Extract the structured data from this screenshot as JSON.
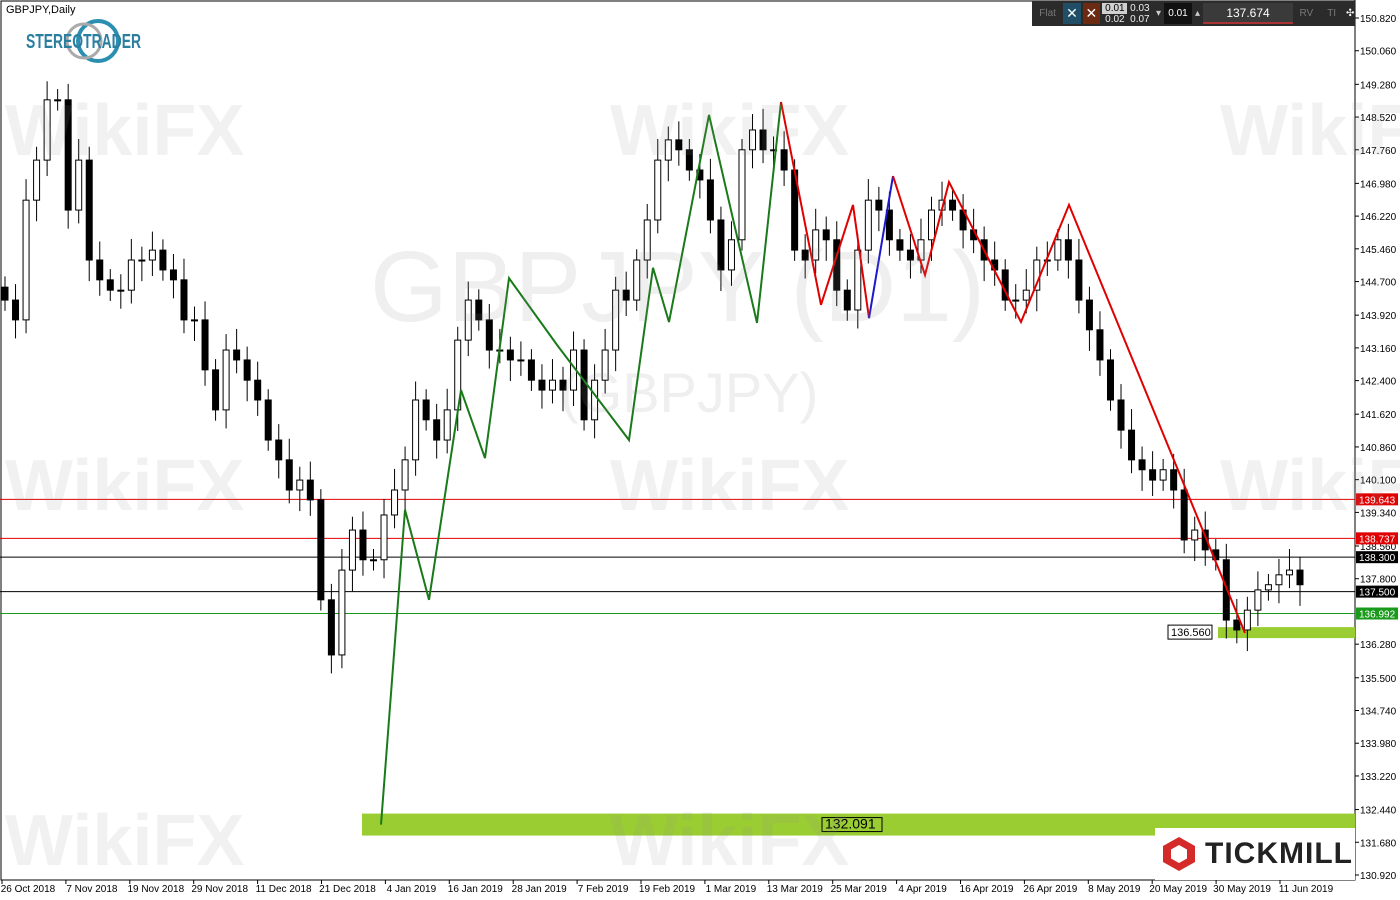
{
  "window": {
    "title": "GBPJPY,Daily",
    "logo_text": "STEREOTRADER"
  },
  "toolbar": {
    "flat": "Flat",
    "close_buy": "✕",
    "close_sell": "✕",
    "lots": [
      "0.01",
      "0.03",
      "0.02",
      "0.07"
    ],
    "quantity": "0.01",
    "price": "137.674",
    "rv": "RV",
    "ti": "TI"
  },
  "watermarks": {
    "wikifx": "WikiFX",
    "symbol": "GBPJPY (D1)",
    "symbol_sub": "(GBPJPY)"
  },
  "branding": {
    "tickmill": "TICKMILL"
  },
  "colors": {
    "bull": "#ffffff",
    "bear": "#000000",
    "up_wave": "#1a7a1a",
    "down_wave": "#e00000",
    "alt_wave": "#1a1acc",
    "zone": "#9acd32",
    "resistance": "#e00000",
    "support": "#1a9a1a"
  },
  "chart_data": {
    "type": "candlestick",
    "symbol": "GBPJPY",
    "timeframe": "Daily",
    "ylim": [
      130.92,
      150.82
    ],
    "y_ticks": [
      "150.820",
      "150.060",
      "149.280",
      "148.520",
      "147.760",
      "146.980",
      "146.220",
      "145.460",
      "144.700",
      "143.920",
      "143.160",
      "142.400",
      "141.620",
      "140.860",
      "140.100",
      "139.340",
      "138.560",
      "137.800",
      "136.280",
      "135.500",
      "134.740",
      "133.980",
      "133.220",
      "132.440",
      "131.680",
      "130.920"
    ],
    "x_ticks": [
      "26 Oct 2018",
      "7 Nov 2018",
      "19 Nov 2018",
      "29 Nov 2018",
      "11 Dec 2018",
      "21 Dec 2018",
      "4 Jan 2019",
      "16 Jan 2019",
      "28 Jan 2019",
      "7 Feb 2019",
      "19 Feb 2019",
      "1 Mar 2019",
      "13 Mar 2019",
      "25 Mar 2019",
      "4 Apr 2019",
      "16 Apr 2019",
      "26 Apr 2019",
      "8 May 2019",
      "20 May 2019",
      "30 May 2019",
      "11 Jun 2019"
    ],
    "closes": [
      144.27,
      143.81,
      146.59,
      147.52,
      148.92,
      148.92,
      146.36,
      147.52,
      145.2,
      144.74,
      144.5,
      144.5,
      145.2,
      145.2,
      145.43,
      144.97,
      144.74,
      143.81,
      143.81,
      142.65,
      141.72,
      143.11,
      142.88,
      142.41,
      141.95,
      141.02,
      140.56,
      139.86,
      140.09,
      139.63,
      137.31,
      136.03,
      138.0,
      138.93,
      138.24,
      138.24,
      139.28,
      139.86,
      140.56,
      141.95,
      141.49,
      141.02,
      141.72,
      143.34,
      144.27,
      143.81,
      143.11,
      143.11,
      142.88,
      142.88,
      142.41,
      142.18,
      142.41,
      142.18,
      143.11,
      141.49,
      142.41,
      143.11,
      144.5,
      144.27,
      145.2,
      146.13,
      147.52,
      147.99,
      147.76,
      147.29,
      147.06,
      146.13,
      144.97,
      145.67,
      147.76,
      148.22,
      147.76,
      147.76,
      147.29,
      145.43,
      145.2,
      145.9,
      145.67,
      144.5,
      144.04,
      145.43,
      146.59,
      146.36,
      145.67,
      145.43,
      145.2,
      145.67,
      146.36,
      146.59,
      146.36,
      145.9,
      145.67,
      145.2,
      144.97,
      144.27,
      144.27,
      144.5,
      145.2,
      145.2,
      145.67,
      145.2,
      144.27,
      143.58,
      142.88,
      141.95,
      141.25,
      140.56,
      140.33,
      140.09,
      140.33,
      139.86,
      138.7,
      138.93,
      138.47,
      138.24,
      136.84,
      136.61,
      137.07,
      137.54,
      137.66,
      137.89,
      138.0,
      137.66
    ],
    "zigzag": [
      {
        "color": "up_wave",
        "points": [
          [
            47,
            132.09
          ],
          [
            50,
            139.4
          ],
          [
            53,
            137.31
          ],
          [
            57,
            142.18
          ],
          [
            60,
            140.6
          ],
          [
            63,
            144.78
          ],
          [
            69,
            143.23
          ],
          [
            78,
            141.02
          ],
          [
            81,
            145.02
          ],
          [
            83,
            143.76
          ],
          [
            88,
            148.57
          ],
          [
            94,
            143.74
          ],
          [
            97,
            148.87
          ]
        ]
      },
      {
        "color": "down_wave",
        "points": [
          [
            97,
            148.87
          ],
          [
            102,
            144.16
          ],
          [
            106,
            146.48
          ],
          [
            108,
            143.85
          ]
        ]
      },
      {
        "color": "alt_wave",
        "points": [
          [
            108,
            143.85
          ],
          [
            111,
            147.15
          ]
        ]
      },
      {
        "color": "down_wave",
        "points": [
          [
            111,
            147.15
          ],
          [
            115,
            144.85
          ],
          [
            118,
            147.01
          ],
          [
            127,
            143.76
          ],
          [
            133,
            146.48
          ],
          [
            155,
            136.54
          ]
        ]
      }
    ],
    "levels": [
      {
        "price": 139.643,
        "label": "139.643",
        "color": "#e00000"
      },
      {
        "price": 138.737,
        "label": "138.737",
        "color": "#e00000"
      },
      {
        "price": 138.3,
        "label": "138.300",
        "color": "#000000"
      },
      {
        "price": 137.5,
        "label": "137.500",
        "color": "#000000"
      },
      {
        "price": 136.992,
        "label": "136.992",
        "color": "#1a9a1a"
      }
    ],
    "zones": [
      {
        "price": 136.56,
        "label": "136.560",
        "start_bar": 152
      },
      {
        "price": 132.091,
        "label": "132.091",
        "start_bar": 45
      }
    ]
  }
}
